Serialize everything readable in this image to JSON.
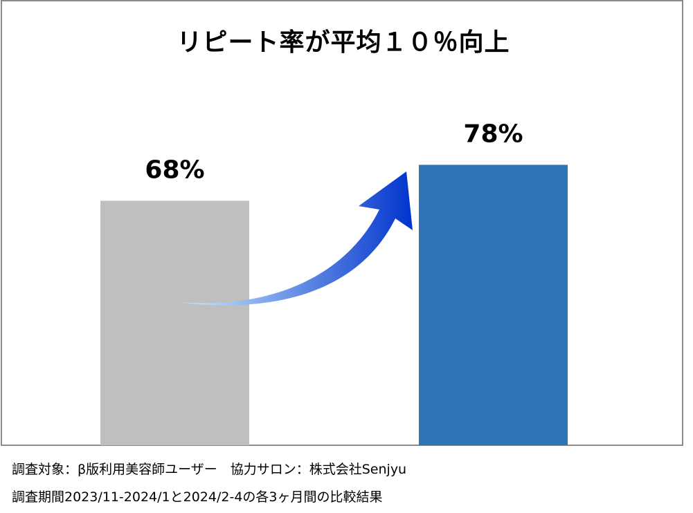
{
  "chart_data": {
    "type": "bar",
    "title": "リピート率が平均１０％向上",
    "categories": [
      "",
      ""
    ],
    "values": [
      68,
      78
    ],
    "data_labels": [
      "68%",
      "78%"
    ],
    "colors": [
      "#bfbfbf",
      "#2e75b6"
    ],
    "ylim": [
      0,
      100
    ],
    "xlabel": "",
    "ylabel": "",
    "grid": false,
    "annotation": "arrow-up-right"
  },
  "arrow": {
    "gradient_start": "#cfeeff",
    "gradient_end": "#0033cc"
  },
  "notes": {
    "line1": "調査対象：β版利用美容師ユーザー　協力サロン：株式会社Senjyu",
    "line2": "調査期間2023/11-2024/1と2024/2-4の各3ヶ月間の比較結果"
  }
}
